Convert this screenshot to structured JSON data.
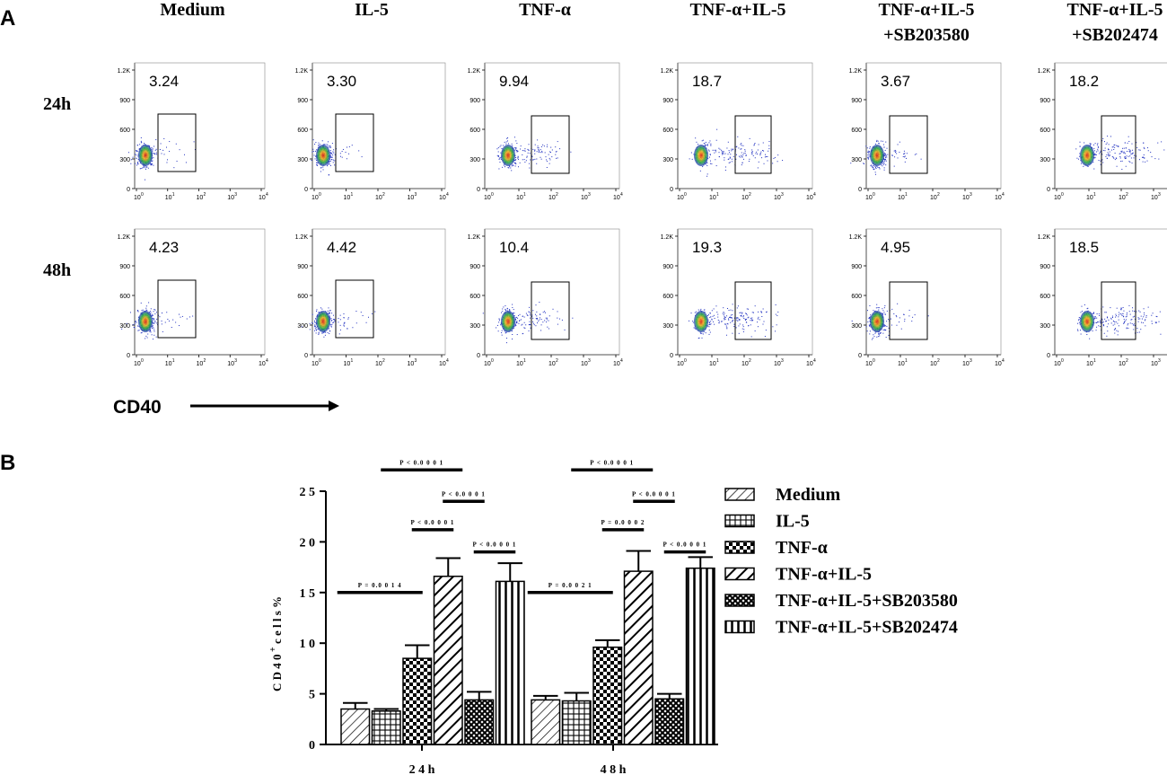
{
  "panel_a": {
    "label": "A",
    "columns": [
      "Medium",
      "IL-5",
      "TNF-α",
      "TNF-α+IL-5",
      "TNF-α+IL-5 +SB203580",
      "TNF-α+IL-5 +SB202474"
    ],
    "column_lines": [
      [
        "Medium"
      ],
      [
        "IL-5"
      ],
      [
        "TNF-α"
      ],
      [
        "TNF-α+IL-5"
      ],
      [
        "TNF-α+IL-5",
        "+SB203580"
      ],
      [
        "TNF-α+IL-5",
        "+SB202474"
      ]
    ],
    "rows": [
      "24h",
      "48h"
    ],
    "gate_values": [
      [
        "3.24",
        "3.30",
        "9.94",
        "18.7",
        "3.67",
        "18.2"
      ],
      [
        "4.23",
        "4.42",
        "10.4",
        "19.3",
        "4.95",
        "18.5"
      ]
    ],
    "y_ticks": [
      "1.2K",
      "900",
      "600",
      "300",
      "0"
    ],
    "x_ticks": [
      "10",
      "10",
      "10",
      "10",
      "10"
    ],
    "x_tick_exponents": [
      "0",
      "1",
      "2",
      "3",
      "4"
    ],
    "x_axis_label": "CD40",
    "colors": {
      "dots": "#2030c0",
      "core_hot": "#e02010",
      "core_warm": "#f0b020",
      "core_mid": "#30b040"
    }
  },
  "panel_b": {
    "label": "B",
    "chart_data": {
      "type": "bar",
      "categories": [
        "2 4 h",
        "4 8 h"
      ],
      "series": [
        {
          "name": "Medium",
          "values": [
            3.5,
            4.4
          ],
          "errors": [
            0.6,
            0.4
          ],
          "pattern": "diag-thin"
        },
        {
          "name": "IL-5",
          "values": [
            3.3,
            4.3
          ],
          "errors": [
            0.2,
            0.8
          ],
          "pattern": "grid"
        },
        {
          "name": "TNF-α",
          "values": [
            8.5,
            9.6
          ],
          "errors": [
            1.3,
            0.7
          ],
          "pattern": "checker"
        },
        {
          "name": "TNF-α+IL-5",
          "values": [
            16.6,
            17.1
          ],
          "errors": [
            1.8,
            2.0
          ],
          "pattern": "diag-thick"
        },
        {
          "name": "TNF-α+IL-5+SB203580",
          "values": [
            4.4,
            4.5
          ],
          "errors": [
            0.8,
            0.5
          ],
          "pattern": "cross"
        },
        {
          "name": "TNF-α+IL-5+SB202474",
          "values": [
            16.1,
            17.4
          ],
          "errors": [
            1.8,
            1.1
          ],
          "pattern": "vert"
        }
      ],
      "ylabel_main": "C D 4 0",
      "ylabel_sup": "+",
      "ylabel_tail": "  c e l l s  %",
      "ylim": [
        0,
        25
      ],
      "y_tick_values": [
        0,
        5,
        10,
        15,
        20,
        25
      ],
      "y_tick_labels": [
        "0",
        "5",
        "1 0",
        "1 5",
        "2 0",
        "2 5"
      ],
      "legend_position": "right",
      "significance": [
        {
          "group": 0,
          "from": 0,
          "to": 2,
          "level": 15,
          "text": "P = 0.0 0 1 4"
        },
        {
          "group": 0,
          "from": 2,
          "to": 3,
          "level": 21.2,
          "text": "P < 0.0 0 0 1"
        },
        {
          "group": 0,
          "from": 3,
          "to": 4,
          "level": 24.0,
          "text": "P < 0.0 0 0 1"
        },
        {
          "group": 0,
          "from": 4,
          "to": 5,
          "level": 19.0,
          "text": "P < 0.0 0 0 1"
        },
        {
          "group": 0,
          "from": 1,
          "to": 3,
          "level": 27.1,
          "text": "P < 0.0 0 0 1"
        },
        {
          "group": 1,
          "from": 0,
          "to": 2,
          "level": 15,
          "text": "P = 0.0 0 2 1"
        },
        {
          "group": 1,
          "from": 2,
          "to": 3,
          "level": 21.2,
          "text": "P = 0.0 0 0 2"
        },
        {
          "group": 1,
          "from": 3,
          "to": 4,
          "level": 24.0,
          "text": "P < 0.0 0 0 1"
        },
        {
          "group": 1,
          "from": 4,
          "to": 5,
          "level": 19.0,
          "text": "P < 0.0 0 0 1"
        },
        {
          "group": 1,
          "from": 1,
          "to": 3,
          "level": 27.1,
          "text": "P < 0.0 0 0 1"
        }
      ]
    }
  }
}
